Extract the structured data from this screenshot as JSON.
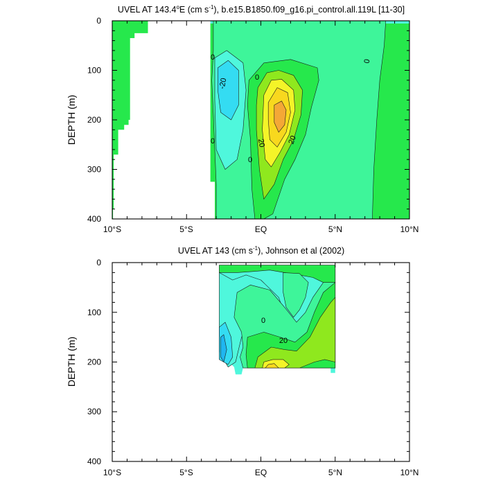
{
  "colors": {
    "c_m30": "#1fb6f0",
    "c_m20": "#34dcf2",
    "c_m10": "#4ff7dc",
    "c_0": "#3ef59a",
    "c_10": "#26e84c",
    "c_20": "#8fe81e",
    "c_30": "#f4f428",
    "c_40": "#f8d81e",
    "c_50": "#f4a836",
    "land": "#ffffff"
  },
  "chart_data": [
    {
      "type": "heatmap",
      "title_parts": {
        "pre": "UVEL AT 143.4",
        "sup1": "o",
        "mid": "E (cm s",
        "sup2": "-1",
        "post": "), b.e15.B1850.f09_g16.pi_control.all.119L [11-30]"
      },
      "ylabel": "DEPTH (m)",
      "xlim": [
        -10,
        10
      ],
      "ylim": [
        400,
        0
      ],
      "xtick_labels": [
        "10°S",
        "5°S",
        "EQ",
        "5°N",
        "10°N"
      ],
      "xtick_values": [
        -10,
        -5,
        0,
        5,
        10
      ],
      "ytick_labels": [
        "0",
        "100",
        "200",
        "300",
        "400"
      ],
      "ytick_values": [
        0,
        100,
        200,
        300,
        400
      ],
      "contour_labels": [
        "-20",
        "0",
        "0",
        "0",
        "0",
        "0",
        "20",
        "20"
      ],
      "contour_levels": [
        {
          "level": 0,
          "points": [
            [
              -3.2,
              0
            ],
            [
              -3.2,
              60
            ],
            [
              -3.3,
              120
            ],
            [
              -3.2,
              190
            ],
            [
              -3.1,
              260
            ],
            [
              -3.0,
              330
            ],
            [
              -3.0,
              400
            ],
            [
              7.5,
              400
            ],
            [
              7.6,
              300
            ],
            [
              7.8,
              200
            ],
            [
              8.0,
              120
            ],
            [
              8.3,
              50
            ],
            [
              8.4,
              0
            ]
          ]
        },
        {
          "level": -10,
          "points": [
            [
              -3.1,
              75
            ],
            [
              -2.3,
              60
            ],
            [
              -1.2,
              85
            ],
            [
              -1.0,
              140
            ],
            [
              -1.2,
              220
            ],
            [
              -1.6,
              280
            ],
            [
              -2.4,
              300
            ],
            [
              -3.0,
              260
            ],
            [
              -3.1,
              160
            ]
          ]
        },
        {
          "level": -20,
          "points": [
            [
              -2.9,
              95
            ],
            [
              -2.2,
              80
            ],
            [
              -1.5,
              100
            ],
            [
              -1.5,
              170
            ],
            [
              -2.0,
              200
            ],
            [
              -2.7,
              185
            ],
            [
              -2.9,
              140
            ]
          ]
        },
        {
          "level": 10,
          "points": [
            [
              -0.8,
              120
            ],
            [
              0.2,
              85
            ],
            [
              2.0,
              78
            ],
            [
              3.8,
              95
            ],
            [
              3.9,
              120
            ],
            [
              3.4,
              175
            ],
            [
              3.0,
              230
            ],
            [
              2.3,
              280
            ],
            [
              1.6,
              320
            ],
            [
              0.8,
              390
            ],
            [
              0.2,
              400
            ],
            [
              -0.4,
              400
            ],
            [
              -0.6,
              340
            ],
            [
              -0.7,
              240
            ],
            [
              -0.9,
              170
            ]
          ]
        },
        {
          "level": 20,
          "points": [
            [
              -0.2,
              135
            ],
            [
              0.4,
              105
            ],
            [
              1.2,
              100
            ],
            [
              2.2,
              110
            ],
            [
              2.8,
              140
            ],
            [
              2.7,
              190
            ],
            [
              2.2,
              240
            ],
            [
              1.5,
              280
            ],
            [
              0.9,
              330
            ],
            [
              0.2,
              360
            ],
            [
              -0.1,
              300
            ],
            [
              -0.3,
              220
            ],
            [
              -0.3,
              170
            ]
          ]
        },
        {
          "level": 30,
          "points": [
            [
              0.2,
              150
            ],
            [
              0.7,
              120
            ],
            [
              1.4,
              118
            ],
            [
              2.2,
              140
            ],
            [
              2.3,
              180
            ],
            [
              1.9,
              230
            ],
            [
              1.3,
              265
            ],
            [
              0.7,
              295
            ],
            [
              0.3,
              280
            ],
            [
              0.1,
              220
            ]
          ]
        },
        {
          "level": 40,
          "points": [
            [
              0.5,
              165
            ],
            [
              1.1,
              135
            ],
            [
              1.8,
              145
            ],
            [
              2.0,
              185
            ],
            [
              1.7,
              225
            ],
            [
              1.1,
              255
            ],
            [
              0.6,
              240
            ],
            [
              0.5,
              200
            ]
          ]
        },
        {
          "level": 50,
          "points": [
            [
              0.9,
              170
            ],
            [
              1.4,
              162
            ],
            [
              1.7,
              180
            ],
            [
              1.6,
              210
            ],
            [
              1.2,
              225
            ],
            [
              0.9,
              205
            ]
          ]
        }
      ],
      "masks": [
        {
          "region": "land",
          "points": [
            [
              -10,
              0
            ],
            [
              -10,
              400
            ],
            [
              -9.95,
              400
            ],
            [
              -9.95,
              380
            ],
            [
              -9.9,
              380
            ],
            [
              -9.9,
              270
            ],
            [
              -9.6,
              270
            ],
            [
              -9.6,
              220
            ],
            [
              -9.2,
              220
            ],
            [
              -9.2,
              210
            ],
            [
              -8.9,
              210
            ],
            [
              -8.9,
              200
            ],
            [
              -8.8,
              200
            ],
            [
              -8.8,
              35
            ],
            [
              -8.5,
              35
            ],
            [
              -8.5,
              25
            ],
            [
              -7.6,
              25
            ],
            [
              -7.6,
              0
            ]
          ]
        },
        {
          "region": "land",
          "points": [
            [
              -7.6,
              0
            ],
            [
              -7.6,
              25
            ],
            [
              -8.5,
              25
            ],
            [
              -8.5,
              35
            ],
            [
              -8.8,
              35
            ],
            [
              -8.8,
              200
            ],
            [
              -8.9,
              200
            ],
            [
              -8.9,
              210
            ],
            [
              -9.2,
              210
            ],
            [
              -9.2,
              220
            ],
            [
              -9.6,
              220
            ],
            [
              -9.6,
              270
            ],
            [
              -9.9,
              270
            ],
            [
              -9.9,
              380
            ],
            [
              -9.95,
              380
            ],
            [
              -9.95,
              400
            ],
            [
              -3.1,
              400
            ],
            [
              -3.1,
              325
            ],
            [
              -3.4,
              325
            ],
            [
              -3.4,
              0
            ]
          ]
        }
      ]
    },
    {
      "type": "heatmap",
      "title_parts": {
        "pre": "UVEL AT 143 (cm s",
        "sup": "-1",
        "post": "), Johnson et al (2002)"
      },
      "ylabel": "DEPTH (m)",
      "xlim": [
        -10,
        10
      ],
      "ylim": [
        400,
        0
      ],
      "xtick_labels": [
        "10°S",
        "5°S",
        "EQ",
        "5°N",
        "10°N"
      ],
      "xtick_values": [
        -10,
        -5,
        0,
        5,
        10
      ],
      "ytick_labels": [
        "0",
        "100",
        "200",
        "300",
        "400"
      ],
      "ytick_values": [
        0,
        100,
        200,
        300,
        400
      ],
      "contour_labels": [
        "0",
        "20"
      ],
      "data_extent": [
        [
          -2.8,
          5
        ],
        [
          -2.8,
          155
        ],
        [
          -2.5,
          175
        ],
        [
          -2.3,
          195
        ],
        [
          -1.8,
          210
        ],
        [
          -1.7,
          225
        ],
        [
          -1.3,
          225
        ],
        [
          -1.2,
          212
        ],
        [
          4.7,
          212
        ],
        [
          4.7,
          222
        ],
        [
          5.0,
          222
        ],
        [
          5.0,
          5
        ]
      ],
      "contour_levels": [
        {
          "level": -10,
          "points": [
            [
              -2.8,
              20
            ],
            [
              -1.9,
              35
            ],
            [
              -1.0,
              25
            ],
            [
              0.0,
              35
            ],
            [
              1.2,
              70
            ],
            [
              1.5,
              95
            ],
            [
              1.1,
              110
            ],
            [
              0.3,
              95
            ],
            [
              -0.6,
              110
            ],
            [
              -1.3,
              150
            ],
            [
              -1.7,
              200
            ],
            [
              -2.2,
              210
            ],
            [
              -2.8,
              180
            ]
          ]
        },
        {
          "level": -20,
          "points": [
            [
              -2.8,
              130
            ],
            [
              -2.4,
              120
            ],
            [
              -2.0,
              150
            ],
            [
              -1.9,
              190
            ],
            [
              -2.2,
              205
            ],
            [
              -2.8,
              195
            ]
          ]
        },
        {
          "level": -30,
          "points": [
            [
              -2.7,
              150
            ],
            [
              -2.5,
              145
            ],
            [
              -2.3,
              175
            ],
            [
              -2.5,
              200
            ],
            [
              -2.7,
              190
            ]
          ]
        },
        {
          "level": 0,
          "points": [
            [
              -1.6,
              60
            ],
            [
              -0.7,
              45
            ],
            [
              0.6,
              55
            ],
            [
              1.6,
              90
            ],
            [
              2.4,
              120
            ],
            [
              3.0,
              100
            ],
            [
              3.5,
              70
            ],
            [
              4.2,
              40
            ],
            [
              5.0,
              10
            ],
            [
              5.0,
              212
            ],
            [
              -1.2,
              212
            ],
            [
              -1.4,
              190
            ],
            [
              -1.2,
              170
            ],
            [
              -1.3,
              140
            ],
            [
              -1.8,
              110
            ]
          ]
        },
        {
          "level": 10,
          "points": [
            [
              -0.9,
              150
            ],
            [
              0.2,
              140
            ],
            [
              1.3,
              150
            ],
            [
              2.3,
              160
            ],
            [
              3.1,
              140
            ],
            [
              3.6,
              100
            ],
            [
              4.2,
              60
            ],
            [
              5.0,
              40
            ],
            [
              5.0,
              212
            ],
            [
              -0.9,
              212
            ],
            [
              -1.0,
              185
            ]
          ]
        },
        {
          "level": 20,
          "points": [
            [
              -0.2,
              190
            ],
            [
              0.7,
              170
            ],
            [
              1.6,
              175
            ],
            [
              2.4,
              178
            ],
            [
              3.3,
              150
            ],
            [
              4.0,
              110
            ],
            [
              4.7,
              80
            ],
            [
              5.0,
              70
            ],
            [
              5.0,
              200
            ],
            [
              4.3,
              195
            ],
            [
              3.6,
              200
            ],
            [
              2.6,
              212
            ],
            [
              -0.4,
              212
            ]
          ]
        },
        {
          "level": 30,
          "points": [
            [
              0.2,
              200
            ],
            [
              0.8,
              195
            ],
            [
              1.5,
              195
            ],
            [
              1.9,
              205
            ],
            [
              1.6,
              212
            ],
            [
              0.1,
              212
            ]
          ]
        },
        {
          "level": 40,
          "points": [
            [
              0.3,
              212
            ],
            [
              0.5,
              205
            ],
            [
              0.9,
              203
            ],
            [
              1.2,
              212
            ]
          ]
        },
        {
          "level": 10,
          "points": [
            [
              -2.8,
              5
            ],
            [
              5.0,
              5
            ],
            [
              5.0,
              40
            ],
            [
              4.2,
              40
            ],
            [
              3.5,
              30
            ],
            [
              2.6,
              25
            ],
            [
              1.6,
              20
            ],
            [
              0.6,
              15
            ],
            [
              -0.6,
              18
            ],
            [
              -1.6,
              20
            ],
            [
              -2.8,
              20
            ]
          ]
        },
        {
          "level": 0,
          "points": [
            [
              1.5,
              20
            ],
            [
              2.6,
              22
            ],
            [
              3.2,
              40
            ],
            [
              3.0,
              70
            ],
            [
              2.6,
              95
            ],
            [
              2.2,
              110
            ],
            [
              1.7,
              90
            ],
            [
              1.5,
              60
            ]
          ]
        }
      ]
    }
  ]
}
